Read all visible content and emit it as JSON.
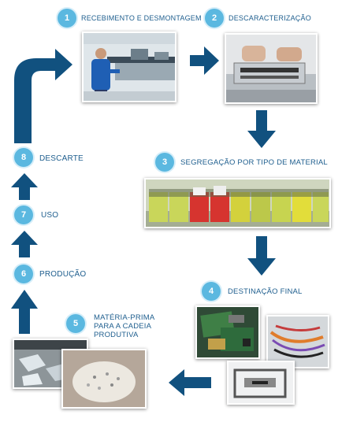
{
  "steps": [
    {
      "num": "1",
      "label": "RECEBIMENTO E DESMONTAGEM"
    },
    {
      "num": "2",
      "label": "DESCARACTERIZAÇÃO"
    },
    {
      "num": "3",
      "label": "SEGREGAÇÃO POR TIPO DE MATERIAL"
    },
    {
      "num": "4",
      "label": "DESTINAÇÃO FINAL"
    },
    {
      "num": "5",
      "label_lines": [
        "MATÉRIA-PRIMA",
        "PARA A CADEIA",
        "PRODUTIVA"
      ]
    },
    {
      "num": "6",
      "label": "PRODUÇÃO"
    },
    {
      "num": "7",
      "label": "USO"
    },
    {
      "num": "8",
      "label": "DESCARTE"
    }
  ],
  "colors": {
    "badge": "#5bb8e0",
    "label": "#1e5e8e",
    "arrow": "#11517f"
  }
}
